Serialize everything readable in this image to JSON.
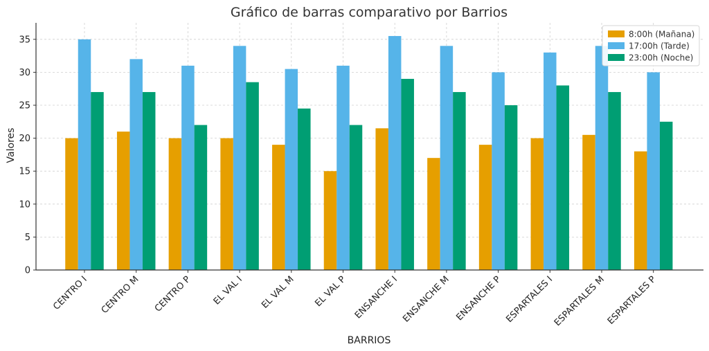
{
  "chart_data": {
    "type": "bar",
    "title": "Gráfico de barras comparativo por Barrios",
    "xlabel": "BARRIOS",
    "ylabel": "Valores",
    "ylim": [
      0,
      37.5
    ],
    "yticks": [
      0,
      5,
      10,
      15,
      20,
      25,
      30,
      35
    ],
    "grid": true,
    "legend_position": "top-right",
    "categories": [
      "CENTRO I",
      "CENTRO M",
      "CENTRO P",
      "EL VAL I",
      "EL VAL M",
      "EL VAL P",
      "ENSANCHE I",
      "ENSANCHE M",
      "ENSANCHE P",
      "ESPARTALES I",
      "ESPARTALES M",
      "ESPARTALES P"
    ],
    "series": [
      {
        "name": "8:00h (Mañana)",
        "color": "#E69F00",
        "values": [
          20,
          21,
          20,
          20,
          19,
          15,
          21.5,
          17,
          19,
          20,
          20.5,
          18
        ]
      },
      {
        "name": "17:00h (Tarde)",
        "color": "#56B4E9",
        "values": [
          35,
          32,
          31,
          34,
          30.5,
          31,
          35.5,
          34,
          30,
          33,
          34,
          30
        ]
      },
      {
        "name": "23:00h (Noche)",
        "color": "#009E73",
        "values": [
          27,
          27,
          22,
          28.5,
          24.5,
          22,
          29,
          27,
          25,
          28,
          27,
          22.5
        ]
      }
    ]
  }
}
